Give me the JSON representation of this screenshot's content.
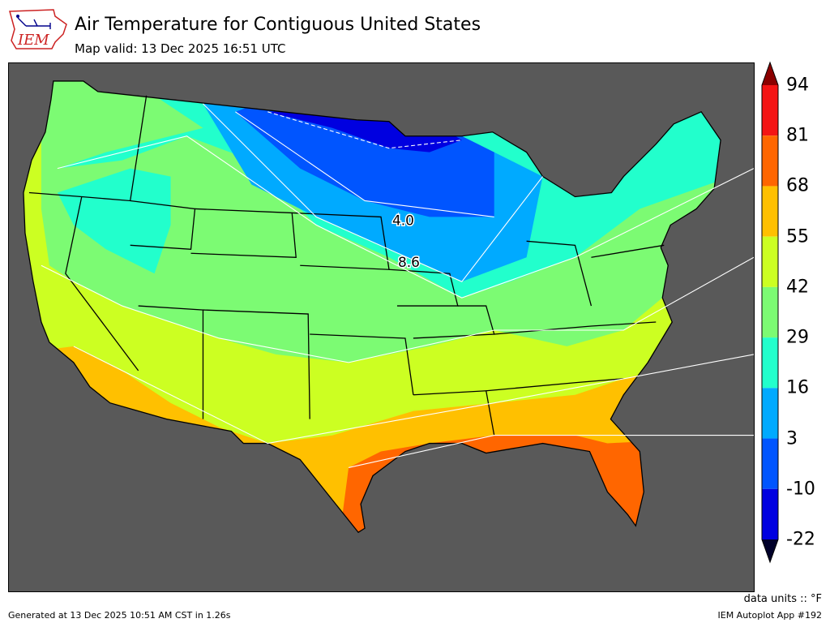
{
  "header": {
    "title": "Air Temperature for Contiguous United States",
    "subtitle": "Map valid: 13 Dec 2025 16:51 UTC",
    "logo_text": "IEM"
  },
  "colorbar": {
    "levels": [
      "94",
      "81",
      "68",
      "55",
      "42",
      "29",
      "16",
      "3",
      "-10",
      "-22"
    ],
    "colors": [
      "#f41414",
      "#ff6600",
      "#ffc000",
      "#ccff22",
      "#7cfb73",
      "#22ffcc",
      "#00aaff",
      "#0055ff",
      "#0000e0"
    ],
    "over_color": "#8b0000",
    "under_color": "#00002a"
  },
  "map": {
    "background_color": "#595959",
    "contour_labels": [
      "4.0",
      "8.6"
    ]
  },
  "footer": {
    "units": "data units :: °F",
    "generated": "Generated at 13 Dec 2025 10:51 AM CST in 1.26s",
    "app": "IEM Autoplot App #192"
  }
}
